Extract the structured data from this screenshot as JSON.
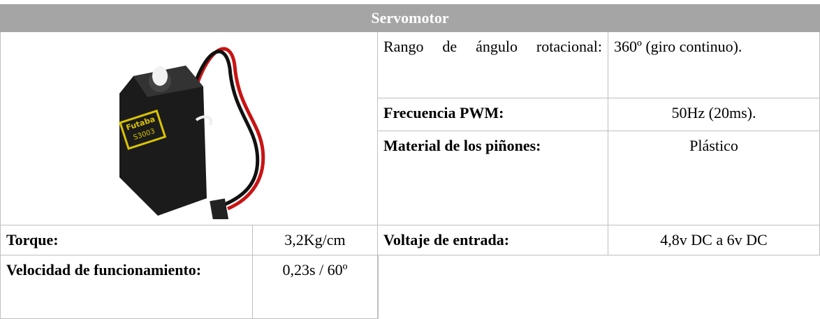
{
  "table": {
    "title": "Servomotor",
    "image_label": [
      "Futaba",
      "S3003"
    ],
    "right_rows": [
      {
        "label": "Rango de ángulo rotacional:",
        "value": "360º (giro continuo)."
      },
      {
        "label": "Frecuencia PWM:",
        "value": "50Hz (20ms)."
      },
      {
        "label": "Material de los piñones:",
        "value": "Plástico"
      }
    ],
    "bottom_rows": [
      [
        "Torque:",
        "3,2Kg/cm",
        "Voltaje de entrada:",
        "4,8v DC a 6v DC"
      ],
      [
        "Velocidad de funcionamiento:",
        "0,23s / 60º"
      ]
    ]
  }
}
